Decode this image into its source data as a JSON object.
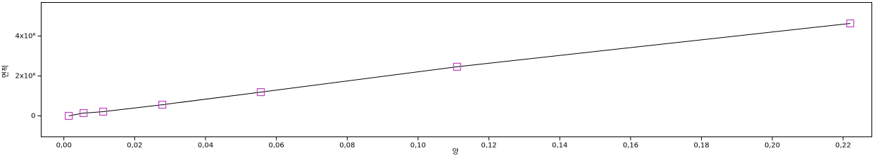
{
  "chart_data": {
    "type": "scatter",
    "x_label": "양",
    "y_label": "면적",
    "series": [
      {
        "color": "#c040c0",
        "marker": "square",
        "x": [
          0.00139,
          0.00556,
          0.0111,
          0.0278,
          0.0556,
          0.111,
          0.222
        ],
        "values": [
          0,
          140000,
          210000,
          560000,
          1190000,
          2460000,
          4630000
        ]
      }
    ],
    "fit_line_color": "#000000",
    "xlim": [
      -0.0064,
      0.2281
    ],
    "ylim": [
      -1050000,
      5680000
    ],
    "xticks": [
      {
        "value": 0,
        "label": "0,00"
      },
      {
        "value": 0.02,
        "label": "0,02"
      },
      {
        "value": 0.04,
        "label": "0,04"
      },
      {
        "value": 0.06,
        "label": "0,06"
      },
      {
        "value": 0.08,
        "label": "0,08"
      },
      {
        "value": 0.1,
        "label": "0,10"
      },
      {
        "value": 0.12,
        "label": "0,12"
      },
      {
        "value": 0.14,
        "label": "0,14"
      },
      {
        "value": 0.16,
        "label": "0,16"
      },
      {
        "value": 0.18,
        "label": "0,18"
      },
      {
        "value": 0.2,
        "label": "0,20"
      },
      {
        "value": 0.22,
        "label": "0,22"
      }
    ],
    "yticks": [
      0,
      {
        "value": 2000000,
        "label": "2x10⁶"
      },
      {
        "value": 4000000,
        "label": "4x10⁶"
      }
    ]
  }
}
